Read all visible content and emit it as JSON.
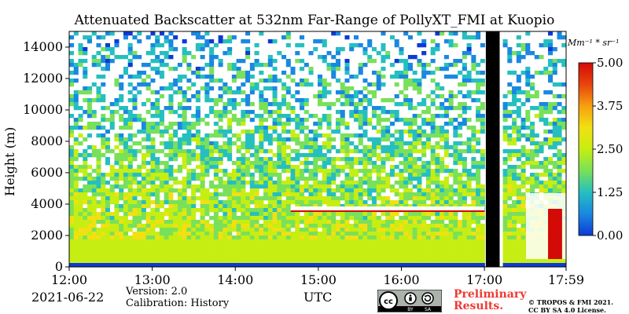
{
  "chart_data": {
    "type": "heatmap",
    "title": "Attenuated Backscatter at 532nm Far-Range of PollyXT_FMI at Kuopio",
    "xlabel": "UTC",
    "ylabel": "Height (m)",
    "x_ticks": [
      "12:00",
      "13:00",
      "14:00",
      "15:00",
      "16:00",
      "17:00",
      "17:59"
    ],
    "xlim": [
      "12:00",
      "17:59"
    ],
    "y_ticks": [
      0,
      2000,
      4000,
      6000,
      8000,
      10000,
      12000,
      14000
    ],
    "ylim": [
      0,
      15000
    ],
    "colorbar": {
      "unit_label": "Mm⁻¹ * sr⁻¹",
      "ticks": [
        "0.00",
        "1.25",
        "2.50",
        "3.75",
        "5.00"
      ],
      "range": [
        0,
        5
      ],
      "colors": [
        "#0d3ad6",
        "#1a88e0",
        "#25bfc0",
        "#79e05a",
        "#c6ee12",
        "#f2e013",
        "#f6a010",
        "#e8440e",
        "#d40a06"
      ]
    },
    "features": [
      {
        "name": "boundary layer aerosol",
        "from_height": 0,
        "to_height": 1800,
        "value": 2.5
      },
      {
        "name": "cloud layer",
        "time_range": [
          "14:40",
          "17:00"
        ],
        "height": 3700,
        "value": 5.0
      },
      {
        "name": "cloud",
        "time_range": [
          "17:30",
          "17:59"
        ],
        "height_range": [
          500,
          4700
        ],
        "value": 5.0
      },
      {
        "name": "data gap",
        "time_range": [
          "17:01",
          "17:11"
        ]
      }
    ]
  },
  "footer": {
    "date": "2021-06-22",
    "version": "Version: 2.0",
    "calibration": "Calibration: History",
    "preliminary": "Preliminary Results.",
    "copyright": "© TROPOS & FMI 2021. CC BY SA 4.0 License.",
    "license_icons": [
      "cc-icon",
      "by-icon",
      "sa-icon"
    ],
    "license_badge_labels": [
      "BY",
      "SA"
    ]
  }
}
